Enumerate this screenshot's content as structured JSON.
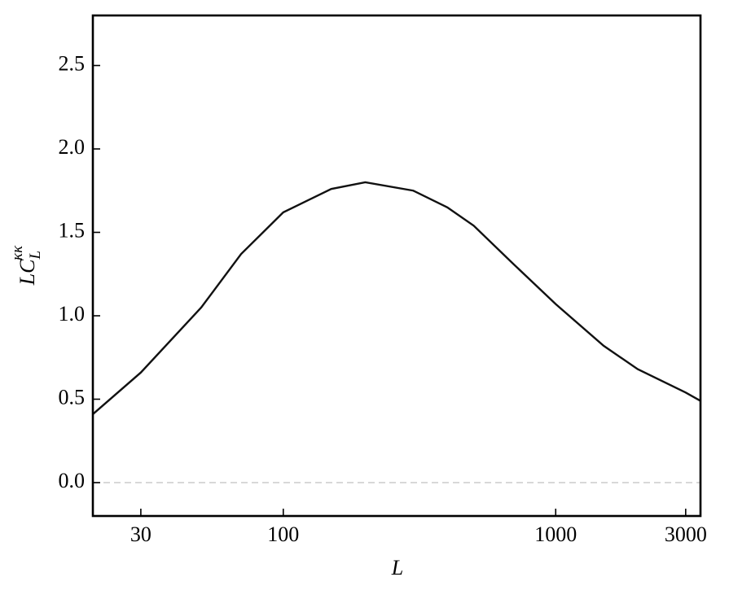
{
  "chart_data": {
    "type": "line",
    "xlabel": "L",
    "ylabel": {
      "main": "LC",
      "sub": "L",
      "sup": "κκ"
    },
    "x": [
      20,
      30,
      50,
      70,
      100,
      150,
      200,
      300,
      400,
      500,
      700,
      1000,
      1500,
      2000,
      3000,
      3400
    ],
    "series": [
      {
        "color": "#111111",
        "values": [
          0.41,
          0.66,
          1.05,
          1.37,
          1.62,
          1.76,
          1.8,
          1.75,
          1.65,
          1.54,
          1.31,
          1.07,
          0.82,
          0.68,
          0.54,
          0.49
        ]
      }
    ],
    "xlim": [
      20,
      3400
    ],
    "xscale": "log",
    "xticks": [
      30,
      100,
      1000,
      3000
    ],
    "ylim": [
      -0.2,
      2.8
    ],
    "yticks": [
      {
        "value": 0,
        "label": "0.0"
      },
      0.5,
      {
        "value": 1,
        "label": "1.0"
      },
      1.5,
      {
        "value": 2,
        "label": "2.0"
      },
      2.5
    ],
    "hlines": [
      0
    ],
    "hline_color": "#cccccc"
  }
}
